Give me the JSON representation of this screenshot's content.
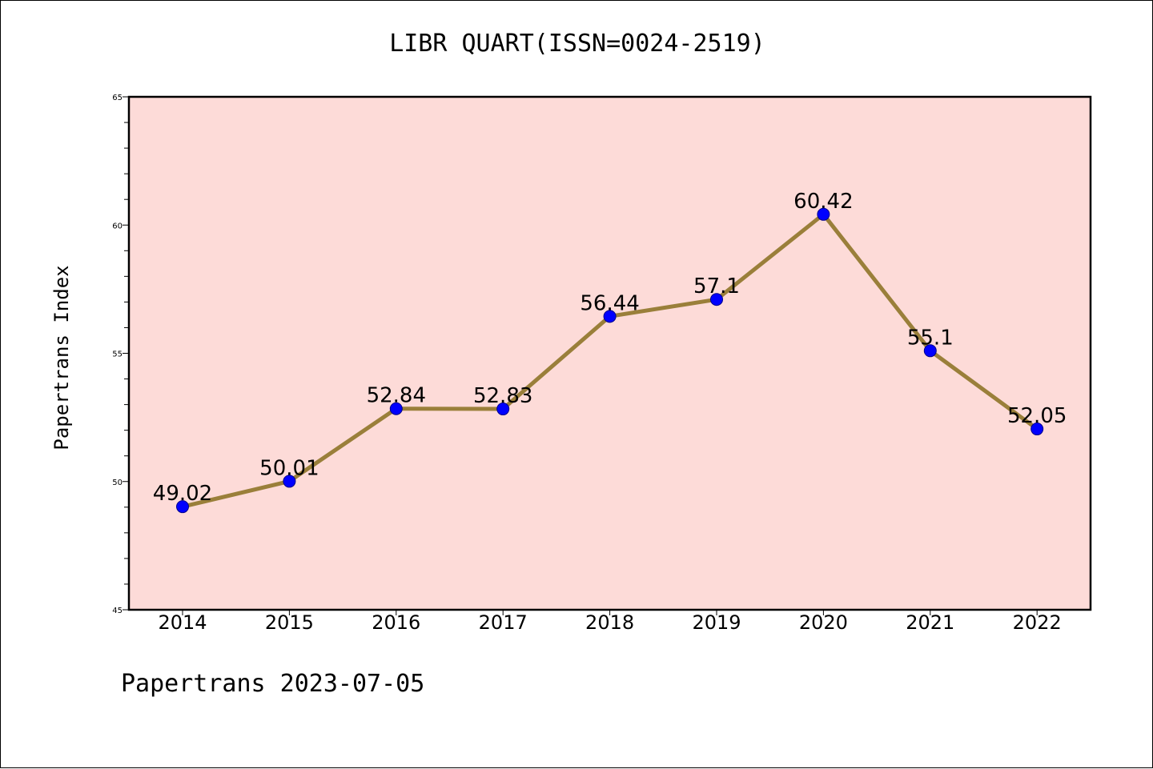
{
  "title": "LIBR QUART(ISSN=0024-2519)",
  "footer": "Papertrans 2023-07-05",
  "colors": {
    "plot_background": "#fddbd8",
    "line": "#9a7f3a",
    "marker": "#0000ff",
    "axis": "#000000"
  },
  "chart_data": {
    "type": "line",
    "title": "LIBR QUART(ISSN=0024-2519)",
    "xlabel": "",
    "ylabel": "Papertrans Index",
    "categories": [
      "2014",
      "2015",
      "2016",
      "2017",
      "2018",
      "2019",
      "2020",
      "2021",
      "2022"
    ],
    "series": [
      {
        "values": [
          49.02,
          50.01,
          52.84,
          52.83,
          56.44,
          57.1,
          60.42,
          55.1,
          52.05
        ],
        "labels": [
          "49.02",
          "50.01",
          "52.84",
          "52.83",
          "56.44",
          "57.1",
          "60.42",
          "55.1",
          "52.05"
        ]
      }
    ],
    "ylim": [
      45,
      65
    ],
    "yticks": [
      "45",
      "50",
      "55",
      "60",
      "65"
    ],
    "grid": false,
    "legend": "none"
  }
}
